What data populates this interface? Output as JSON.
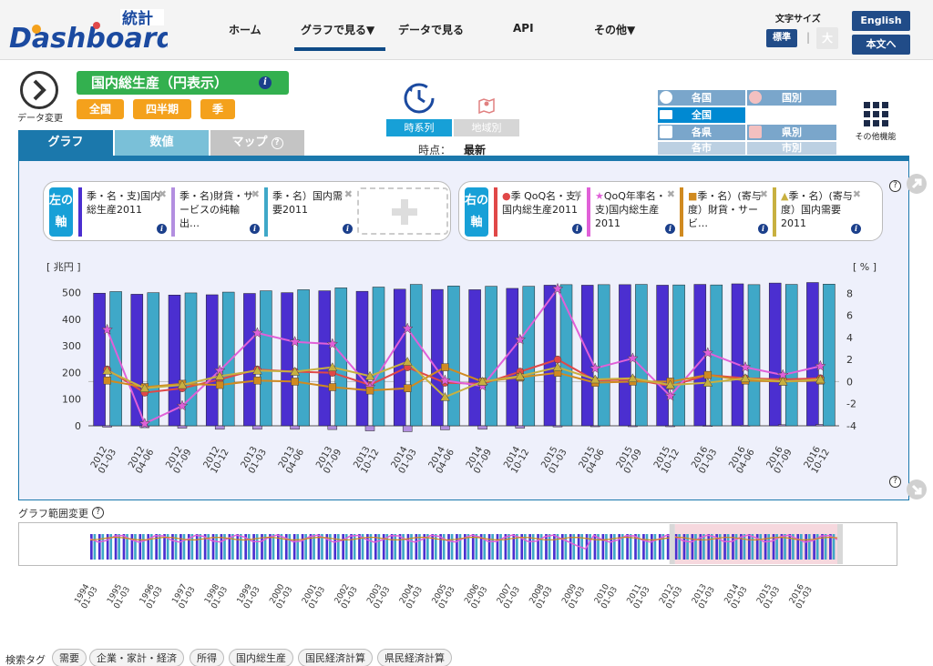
{
  "header": {
    "logo_text": "Dashboard",
    "logo_kanji": "統計",
    "nav": [
      "ホーム",
      "グラフで見る▼",
      "データで見る",
      "API",
      "その他▼"
    ],
    "font_size_label": "文字サイズ",
    "font_normal": "標準",
    "font_separator": "|",
    "font_large": "大",
    "english": "English",
    "main_text": "本文へ"
  },
  "series": {
    "title": "国内総生産（円表示）",
    "change_label": "データ変更",
    "filters": [
      "全国",
      "四半期",
      "季"
    ]
  },
  "mode": {
    "timeseries": "時系列",
    "region": "地域別",
    "time_label": "時点：",
    "time_value": "最新"
  },
  "region": {
    "country": "各国",
    "by_country": "国別",
    "national": "全国",
    "prefecture": "各県",
    "by_prefecture": "県別",
    "city": "各市",
    "by_city": "市別"
  },
  "other_functions": "その他機能",
  "tabs": {
    "graph": "グラフ",
    "values": "数値",
    "map": "マップ",
    "help": "?"
  },
  "left_axis": {
    "label_top": "左の",
    "label_bottom": "軸",
    "cards": [
      {
        "text": "季・名・支)国内総生産2011",
        "color": "#4b2fd0"
      },
      {
        "text": "季・名)財貨・サービスの純輸出…",
        "color": "#b38fe0"
      },
      {
        "text": "季・名）国内需要2011",
        "color": "#3fa8c8"
      }
    ]
  },
  "right_axis": {
    "label_top": "右の",
    "label_bottom": "軸",
    "cards": [
      {
        "marker": "●",
        "text": "季 QoQ名・支)国内総生産2011",
        "color": "#e04848"
      },
      {
        "marker": "★",
        "text": "QoQ年率名・支)国内総生産2011",
        "color": "#e060d8"
      },
      {
        "marker": "■",
        "text": "季・名）(寄与度）財貨・サービ…",
        "color": "#d08a20"
      },
      {
        "marker": "▲",
        "text": "季・名）(寄与度）国内需要2011",
        "color": "#c8b040"
      }
    ]
  },
  "chart_data": {
    "type": "bar",
    "ylabel_left": "[ 兆円 ]",
    "ylabel_right": "[ % ]",
    "ylim_left": [
      0,
      550
    ],
    "yticks_left": [
      0,
      100,
      200,
      300,
      400,
      500
    ],
    "ylim_right": [
      -4,
      8.6
    ],
    "yticks_right": [
      -4,
      -2,
      0,
      2,
      4,
      6,
      8
    ],
    "categories": [
      "2012 01-03",
      "2012 04-06",
      "2012 07-09",
      "2012 10-12",
      "2013 01-03",
      "2013 04-06",
      "2013 07-09",
      "2013 10-12",
      "2014 01-03",
      "2014 04-06",
      "2014 07-09",
      "2014 10-12",
      "2015 01-03",
      "2015 04-06",
      "2015 07-09",
      "2015 10-12",
      "2016 01-03",
      "2016 04-06",
      "2016 07-09",
      "2016 10-12"
    ],
    "series": [
      {
        "name": "季・名・支)国内総生産2011",
        "type": "bar",
        "axis": "left",
        "color": "#4b2fd0",
        "values": [
          498,
          494,
          491,
          492,
          497,
          500,
          507,
          505,
          513,
          512,
          511,
          516,
          528,
          528,
          530,
          528,
          531,
          533,
          536,
          538
        ]
      },
      {
        "name": "季・名)財貨・サービスの純輸出",
        "type": "bar",
        "axis": "left",
        "color": "#b38fe0",
        "values": [
          -5,
          -7,
          -9,
          -13,
          -13,
          -13,
          -14,
          -19,
          -22,
          -15,
          -13,
          -9,
          -4,
          -3,
          -2,
          -1,
          1,
          2,
          4,
          5
        ]
      },
      {
        "name": "季・名）国内需要2011",
        "type": "bar",
        "axis": "left",
        "color": "#3fa8c8",
        "values": [
          504,
          500,
          499,
          502,
          507,
          511,
          518,
          521,
          531,
          525,
          524,
          524,
          530,
          530,
          531,
          529,
          529,
          530,
          531,
          532
        ]
      },
      {
        "name": "季 QoQ名・支)国内総生産2011",
        "type": "line",
        "axis": "right",
        "marker": "circle",
        "color": "#e04848",
        "values": [
          1.1,
          -1.0,
          -0.6,
          0.2,
          1.1,
          0.9,
          0.8,
          -0.3,
          1.3,
          -0.1,
          -0.2,
          0.9,
          2.0,
          0.1,
          0.2,
          -0.4,
          0.6,
          0.3,
          0.2,
          0.3
        ]
      },
      {
        "name": "QoQ年率名・支)国内総生産2011",
        "type": "line",
        "axis": "right",
        "marker": "star",
        "color": "#e060d8",
        "values": [
          4.7,
          -3.8,
          -2.2,
          1.0,
          4.4,
          3.6,
          3.4,
          -0.5,
          4.8,
          0.1,
          -0.4,
          3.8,
          8.4,
          1.2,
          2.1,
          -1.3,
          2.6,
          1.3,
          0.6,
          1.4
        ]
      },
      {
        "name": "季・名）(寄与度）財貨・サービ…",
        "type": "line",
        "axis": "right",
        "marker": "square",
        "color": "#d08a20",
        "values": [
          0.1,
          -0.5,
          -0.2,
          -0.3,
          0.1,
          0.0,
          -0.5,
          -0.8,
          -0.6,
          1.3,
          0.0,
          0.4,
          0.8,
          -0.1,
          0.0,
          0.0,
          0.6,
          0.1,
          0.0,
          0.1
        ]
      },
      {
        "name": "季・名）(寄与度）国内需要2011",
        "type": "line",
        "axis": "right",
        "marker": "triangle",
        "color": "#c8b040",
        "values": [
          1.0,
          -0.6,
          -0.3,
          0.5,
          1.0,
          0.9,
          1.3,
          0.5,
          1.8,
          -1.4,
          0.0,
          0.5,
          1.3,
          0.2,
          0.3,
          -0.3,
          -0.1,
          0.3,
          0.0,
          0.2
        ]
      }
    ]
  },
  "range": {
    "label": "グラフ範囲変更",
    "ticks": [
      "1994 01-03",
      "1995 01-03",
      "1996 01-03",
      "1997 01-03",
      "1998 01-03",
      "1999 01-03",
      "2000 01-03",
      "2001 01-03",
      "2002 01-03",
      "2003 01-03",
      "2004 01-03",
      "2005 01-03",
      "2006 01-03",
      "2007 01-03",
      "2008 01-03",
      "2009 01-03",
      "2010 01-03",
      "2011 01-03",
      "2012 01-03",
      "2013 01-03",
      "2014 01-03",
      "2015 01-03",
      "2016 01-03"
    ]
  },
  "tags": {
    "label": "検索タグ",
    "items": [
      "需要",
      "企業・家計・経済",
      "所得",
      "国内総生産",
      "国民経済計算",
      "県民経済計算"
    ]
  },
  "colors": {
    "header_navy": "#214c88",
    "accent_blue": "#17a0d7",
    "title_green": "#33b04f",
    "pill_orange": "#f4a11c"
  }
}
